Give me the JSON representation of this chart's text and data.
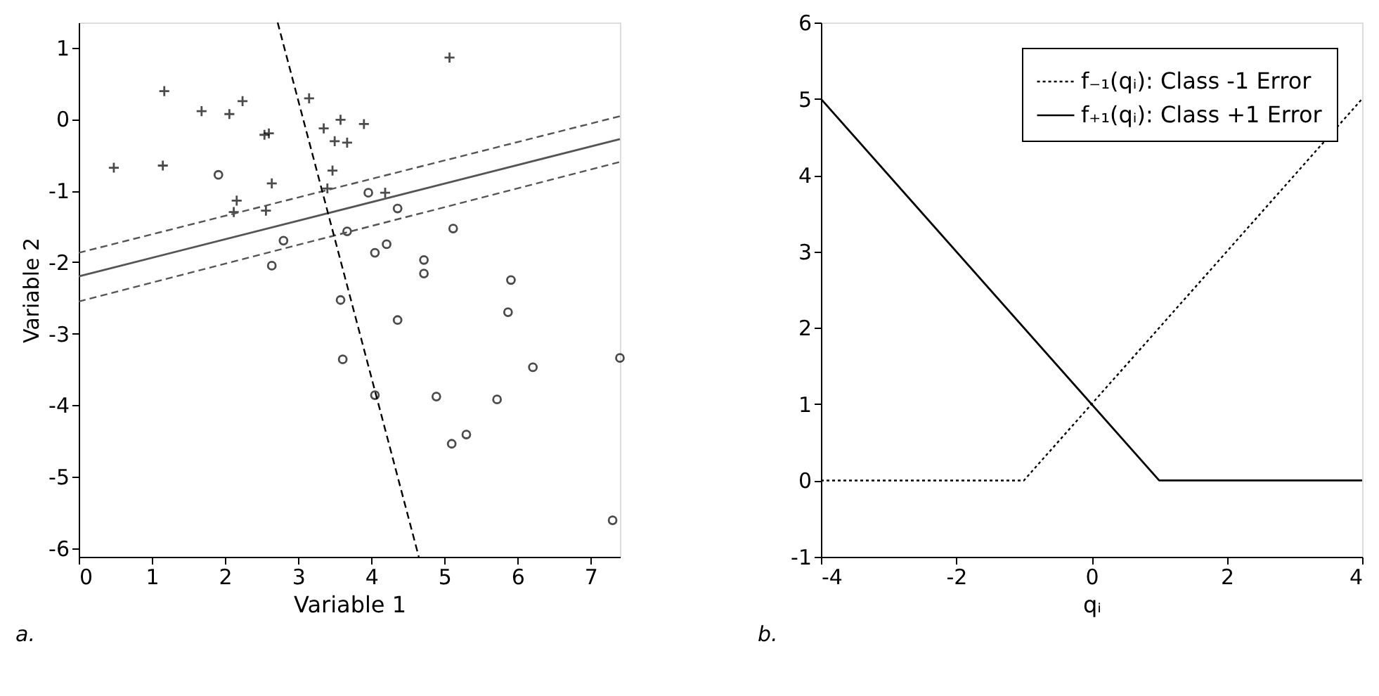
{
  "chart_data": [
    {
      "type": "scatter",
      "xlabel": "Variable 1",
      "ylabel": "Variable 2",
      "xlim": [
        0,
        7.4
      ],
      "ylim": [
        -6.12,
        1.35
      ],
      "xticks": [
        0,
        1,
        2,
        3,
        4,
        5,
        6,
        7
      ],
      "yticks": [
        -6,
        -5,
        -4,
        -3,
        -2,
        -1,
        0,
        1
      ],
      "grid": false,
      "legend": false,
      "annotations": [
        "a."
      ],
      "series": [
        {
          "type": "scatter",
          "marker": "cross",
          "color": "#000000",
          "x": [
            0.48,
            1.15,
            1.17,
            1.68,
            2.06,
            2.24,
            2.54,
            2.6,
            2.64,
            2.16,
            2.12,
            2.56,
            3.15,
            3.35,
            3.58,
            3.5,
            3.67,
            3.47,
            3.4,
            3.9,
            5.07,
            4.19
          ],
          "values": [
            -0.68,
            -0.65,
            0.39,
            0.11,
            0.07,
            0.25,
            -0.22,
            -0.2,
            -0.9,
            -1.14,
            -1.3,
            -1.28,
            0.29,
            -0.13,
            -0.01,
            -0.31,
            -0.33,
            -0.72,
            -0.97,
            -0.07,
            0.86,
            -1.03
          ]
        },
        {
          "type": "scatter",
          "marker": "circle",
          "color": "#000000",
          "x": [
            1.91,
            2.8,
            2.64,
            3.58,
            3.96,
            4.36,
            3.67,
            5.12,
            4.05,
            4.21,
            4.72,
            4.72,
            5.91,
            5.87,
            4.36,
            3.61,
            7.4,
            6.21,
            4.89,
            5.72,
            4.05,
            5.1,
            5.3,
            7.3
          ],
          "values": [
            -0.78,
            -1.7,
            -2.05,
            -2.53,
            -1.03,
            -1.25,
            -1.57,
            -1.53,
            -1.87,
            -1.75,
            -1.97,
            -2.16,
            -2.25,
            -2.7,
            -2.81,
            -3.36,
            -3.34,
            -3.47,
            -3.88,
            -3.92,
            -3.86,
            -4.54,
            -4.41,
            -5.61
          ]
        },
        {
          "type": "line",
          "line_style": "solid",
          "color": "#555555",
          "x": [
            0,
            7.4
          ],
          "values": [
            -2.2,
            -0.28
          ]
        },
        {
          "type": "line",
          "line_style": "dashed",
          "color": "#555555",
          "x": [
            0,
            7.4
          ],
          "values": [
            -1.87,
            0.04
          ]
        },
        {
          "type": "line",
          "line_style": "dashed",
          "color": "#555555",
          "x": [
            0,
            7.4
          ],
          "values": [
            -2.55,
            -0.6
          ]
        },
        {
          "type": "line",
          "line_style": "dashed",
          "color": "#000000",
          "x": [
            2.72,
            4.65
          ],
          "values": [
            1.35,
            -6.12
          ]
        }
      ]
    },
    {
      "type": "line",
      "xlabel": "qᵢ",
      "xlim": [
        -4,
        4
      ],
      "ylim": [
        -1,
        6
      ],
      "xticks": [
        -4,
        -2,
        0,
        2,
        4
      ],
      "yticks": [
        -1,
        0,
        1,
        2,
        3,
        4,
        5,
        6
      ],
      "grid": false,
      "legend": "top right",
      "annotations": [
        "b."
      ],
      "series": [
        {
          "name": "f₋₁(qᵢ): Class -1 Error",
          "line_style": "dotted",
          "color": "#000000",
          "x": [
            -4,
            -1,
            4
          ],
          "values": [
            0,
            0,
            5
          ]
        },
        {
          "name": "f₊₁(qᵢ): Class +1 Error",
          "line_style": "solid",
          "color": "#000000",
          "x": [
            -4,
            1,
            4
          ],
          "values": [
            5,
            0,
            0
          ]
        }
      ]
    }
  ]
}
